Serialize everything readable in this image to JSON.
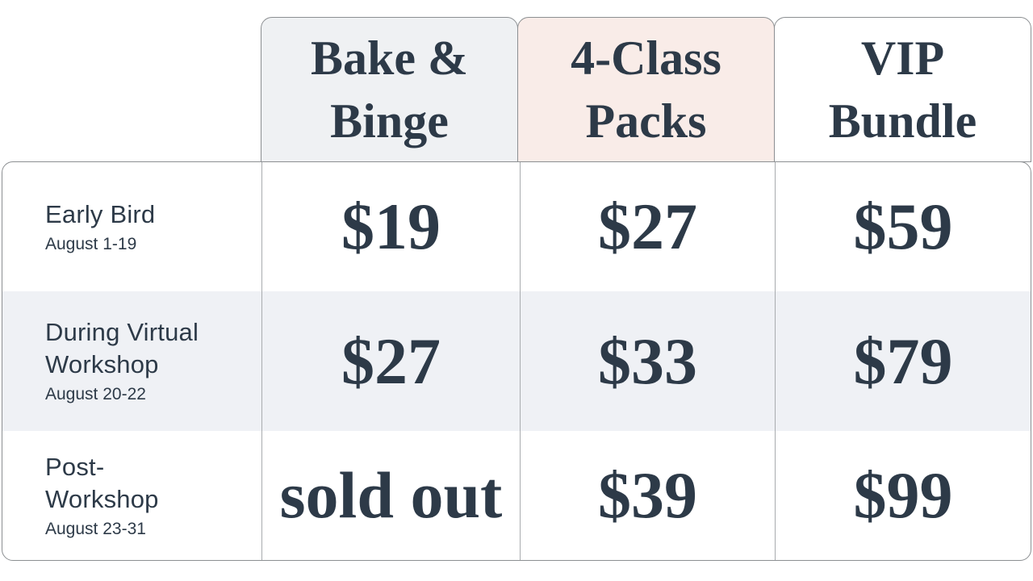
{
  "table": {
    "columns": [
      {
        "label": "Bake & Binge",
        "lines": [
          "Bake &",
          "Binge"
        ],
        "bg": "#eff1f3"
      },
      {
        "label": "4-Class Packs",
        "lines": [
          "4-Class",
          "Packs"
        ],
        "bg": "#f9ece8"
      },
      {
        "label": "VIP Bundle",
        "lines": [
          "VIP",
          "Bundle"
        ],
        "bg": "#ffffff"
      }
    ],
    "rows": [
      {
        "label": "Early Bird",
        "label_lines": [
          "Early Bird"
        ],
        "dates": "August 1-19",
        "prices": [
          "$19",
          "$27",
          "$59"
        ]
      },
      {
        "label": "During Virtual Workshop",
        "label_lines": [
          "During Virtual",
          "Workshop"
        ],
        "dates": "August 20-22",
        "prices": [
          "$27",
          "$33",
          "$79"
        ]
      },
      {
        "label": "Post-Workshop",
        "label_lines": [
          "Post-",
          "Workshop"
        ],
        "dates": "August 23-31",
        "prices": [
          "sold out",
          "$39",
          "$99"
        ]
      }
    ]
  },
  "colors": {
    "text": "#2d3a48",
    "header_bake_binge_bg": "#eff1f3",
    "header_4class_packs_bg": "#f9ece8",
    "header_vip_bundle_bg": "#ffffff",
    "row_stripe_bg": "#eff1f5",
    "outer_border": "#8c8f92",
    "inner_divider": "#a9acaf",
    "page_bg": "#ffffff"
  }
}
